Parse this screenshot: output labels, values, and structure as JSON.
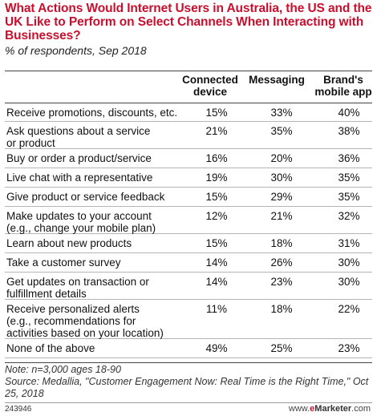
{
  "chart_data": {
    "type": "table",
    "title": "What Actions Would Internet Users in Australia, the US and the UK Like to Perform on Select Channels When Interacting with Businesses?",
    "subtitle": "% of respondents, Sep 2018",
    "columns": [
      "Connected\ndevice",
      "Messaging",
      "Brand's\nmobile app"
    ],
    "rows": [
      {
        "label": "Receive promotions, discounts, etc.",
        "values": [
          "15%",
          "33%",
          "40%"
        ]
      },
      {
        "label": "Ask questions about a service\nor product",
        "values": [
          "21%",
          "35%",
          "38%"
        ]
      },
      {
        "label": "Buy or order a product/service",
        "values": [
          "16%",
          "20%",
          "36%"
        ]
      },
      {
        "label": "Live chat with a representative",
        "values": [
          "19%",
          "30%",
          "35%"
        ]
      },
      {
        "label": "Give product or service feedback",
        "values": [
          "15%",
          "29%",
          "35%"
        ]
      },
      {
        "label": "Make updates to your account\n(e.g., change your mobile plan)",
        "values": [
          "12%",
          "21%",
          "32%"
        ]
      },
      {
        "label": "Learn about new products",
        "values": [
          "15%",
          "18%",
          "31%"
        ]
      },
      {
        "label": "Take a customer survey",
        "values": [
          "14%",
          "26%",
          "30%"
        ]
      },
      {
        "label": "Get updates on transaction or\nfulfillment details",
        "values": [
          "14%",
          "23%",
          "30%"
        ]
      },
      {
        "label": "Receive personalized alerts\n(e.g., recommendations for\nactivities based on your location)",
        "values": [
          "11%",
          "18%",
          "22%"
        ]
      },
      {
        "label": "None of the above",
        "values": [
          "49%",
          "25%",
          "23%"
        ]
      }
    ]
  },
  "note": "Note: n=3,000 ages 18-90",
  "source": "Source: Medallia, \"Customer Engagement Now: Real Time is the Right Time,\" Oct 25, 2018",
  "chart_id": "243946",
  "logo": {
    "prefix": "www.",
    "brand_e": "e",
    "brand_rest": "Marketer",
    "suffix": ".com"
  },
  "colors": {
    "title": "#c8102e",
    "brand": "#c8102e"
  }
}
